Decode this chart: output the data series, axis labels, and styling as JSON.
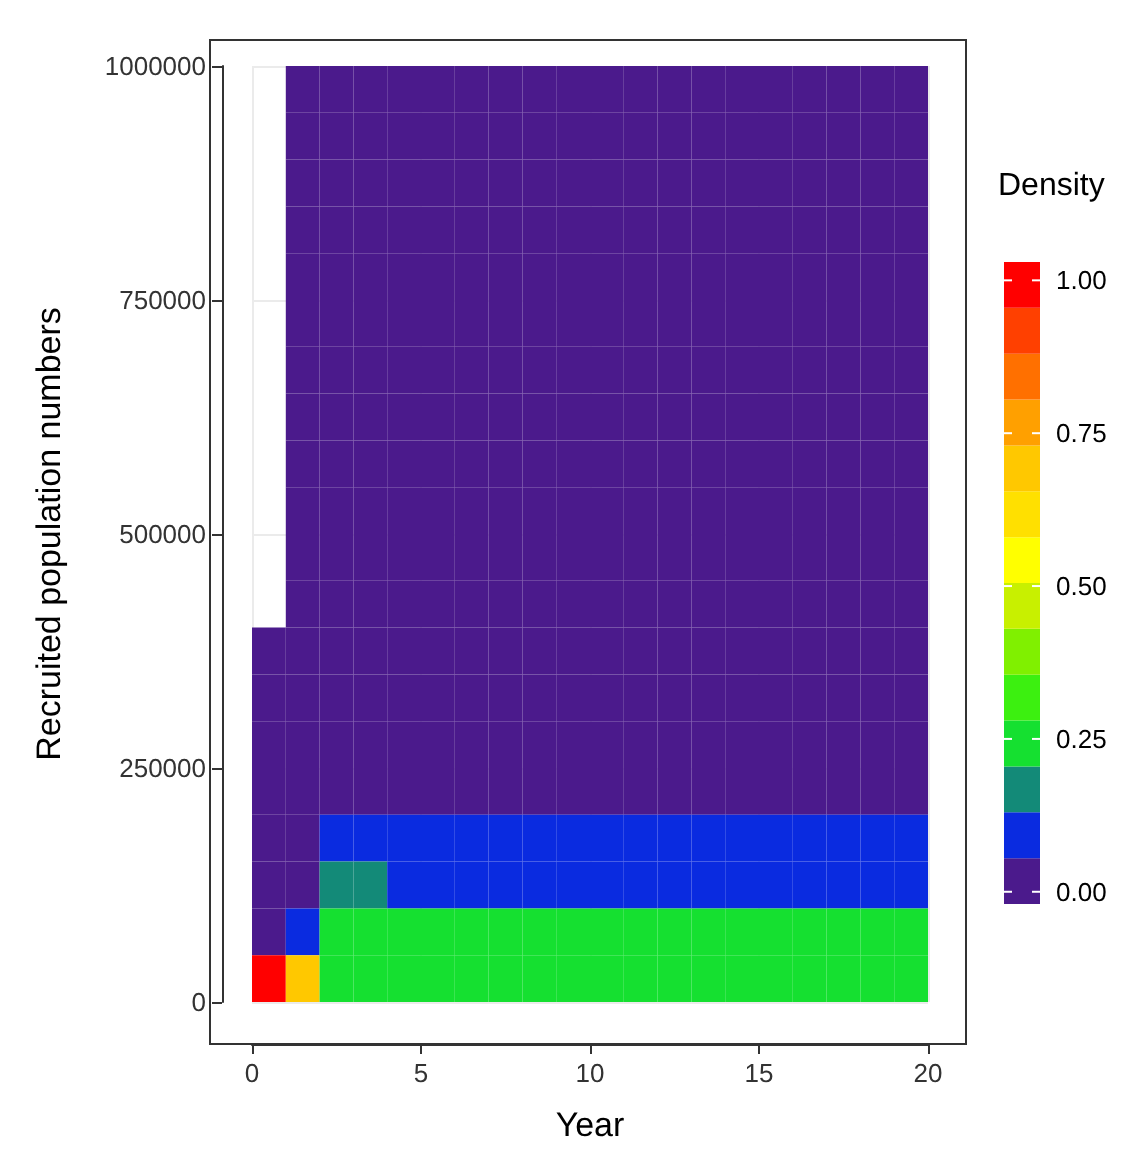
{
  "chart_data": {
    "type": "heatmap",
    "xlabel": "Year",
    "ylabel": "Recruited population numbers",
    "clabel": "Density",
    "x": [
      0.5,
      1.5,
      2.5,
      3.5,
      4.5,
      5.5,
      6.5,
      7.5,
      8.5,
      9.5,
      10.5,
      11.5,
      12.5,
      13.5,
      14.5,
      15.5,
      16.5,
      17.5,
      18.5,
      19.5
    ],
    "cells": [
      [
        null,
        0.005,
        0.008,
        0.01,
        0.008,
        0.01,
        0.008,
        0.01,
        0.008,
        0.008,
        0.01,
        0.008,
        0.008,
        0.01,
        0.008,
        0.01,
        0.008,
        0.01,
        0.008,
        0.01
      ],
      [
        null,
        0.005,
        0.01,
        0.01,
        0.008,
        0.01,
        0.01,
        0.008,
        0.01,
        0.008,
        0.01,
        0.01,
        0.008,
        0.01,
        0.01,
        0.008,
        0.01,
        0.01,
        0.008,
        0.01
      ],
      [
        null,
        0.005,
        0.01,
        0.01,
        0.01,
        0.01,
        0.01,
        0.01,
        0.01,
        0.01,
        0.01,
        0.01,
        0.01,
        0.01,
        0.01,
        0.01,
        0.01,
        0.01,
        0.01,
        0.01
      ],
      [
        null,
        0.005,
        0.01,
        0.01,
        0.01,
        0.01,
        0.01,
        0.01,
        0.01,
        0.01,
        0.01,
        0.01,
        0.01,
        0.01,
        0.01,
        0.01,
        0.01,
        0.01,
        0.01,
        0.01
      ],
      [
        null,
        0.005,
        0.01,
        0.01,
        0.01,
        0.01,
        0.01,
        0.01,
        0.01,
        0.01,
        0.01,
        0.01,
        0.01,
        0.01,
        0.01,
        0.01,
        0.01,
        0.01,
        0.01,
        0.01
      ],
      [
        null,
        0.005,
        0.01,
        0.01,
        0.01,
        0.01,
        0.01,
        0.01,
        0.01,
        0.01,
        0.01,
        0.01,
        0.01,
        0.01,
        0.01,
        0.01,
        0.01,
        0.01,
        0.01,
        0.01
      ],
      [
        null,
        0.005,
        0.01,
        0.01,
        0.01,
        0.01,
        0.01,
        0.01,
        0.01,
        0.01,
        0.01,
        0.01,
        0.01,
        0.01,
        0.01,
        0.01,
        0.01,
        0.01,
        0.01,
        0.01
      ],
      [
        null,
        0.005,
        0.01,
        0.01,
        0.01,
        0.01,
        0.01,
        0.01,
        0.01,
        0.01,
        0.01,
        0.01,
        0.01,
        0.01,
        0.01,
        0.01,
        0.01,
        0.01,
        0.01,
        0.01
      ],
      [
        null,
        0.005,
        0.01,
        0.01,
        0.01,
        0.01,
        0.01,
        0.01,
        0.01,
        0.01,
        0.01,
        0.01,
        0.01,
        0.01,
        0.01,
        0.01,
        0.01,
        0.01,
        0.01,
        0.01
      ],
      [
        null,
        0.005,
        0.01,
        0.01,
        0.01,
        0.01,
        0.01,
        0.01,
        0.01,
        0.01,
        0.01,
        0.01,
        0.01,
        0.01,
        0.01,
        0.01,
        0.01,
        0.01,
        0.01,
        0.01
      ],
      [
        null,
        0.005,
        0.01,
        0.01,
        0.01,
        0.01,
        0.01,
        0.01,
        0.01,
        0.01,
        0.01,
        0.01,
        0.01,
        0.01,
        0.01,
        0.01,
        0.01,
        0.01,
        0.01,
        0.01
      ],
      [
        null,
        0.005,
        0.01,
        0.01,
        0.01,
        0.01,
        0.01,
        0.01,
        0.01,
        0.01,
        0.01,
        0.01,
        0.01,
        0.01,
        0.01,
        0.01,
        0.01,
        0.01,
        0.01,
        0.01
      ],
      [
        0.005,
        0.01,
        0.02,
        0.02,
        0.02,
        0.02,
        0.02,
        0.02,
        0.02,
        0.02,
        0.02,
        0.02,
        0.02,
        0.02,
        0.02,
        0.02,
        0.02,
        0.02,
        0.02,
        0.02
      ],
      [
        0.005,
        0.01,
        0.02,
        0.02,
        0.02,
        0.02,
        0.02,
        0.02,
        0.02,
        0.02,
        0.02,
        0.02,
        0.02,
        0.02,
        0.02,
        0.02,
        0.02,
        0.02,
        0.02,
        0.02
      ],
      [
        0.005,
        0.01,
        0.03,
        0.03,
        0.03,
        0.03,
        0.03,
        0.03,
        0.03,
        0.03,
        0.03,
        0.03,
        0.03,
        0.03,
        0.03,
        0.03,
        0.03,
        0.03,
        0.03,
        0.03
      ],
      [
        0.005,
        0.01,
        0.04,
        0.04,
        0.04,
        0.04,
        0.04,
        0.04,
        0.04,
        0.04,
        0.04,
        0.04,
        0.04,
        0.04,
        0.04,
        0.04,
        0.04,
        0.04,
        0.04,
        0.04
      ],
      [
        0.01,
        0.02,
        0.06,
        0.07,
        0.06,
        0.06,
        0.06,
        0.06,
        0.06,
        0.06,
        0.06,
        0.06,
        0.06,
        0.06,
        0.06,
        0.06,
        0.06,
        0.06,
        0.06,
        0.06
      ],
      [
        0.01,
        0.03,
        0.15,
        0.15,
        0.12,
        0.1,
        0.1,
        0.1,
        0.1,
        0.1,
        0.1,
        0.1,
        0.1,
        0.1,
        0.1,
        0.1,
        0.1,
        0.1,
        0.1,
        0.1
      ],
      [
        0.03,
        0.06,
        0.21,
        0.24,
        0.21,
        0.22,
        0.21,
        0.22,
        0.21,
        0.21,
        0.22,
        0.21,
        0.21,
        0.22,
        0.21,
        0.22,
        0.21,
        0.21,
        0.22,
        0.21
      ],
      [
        1.0,
        0.7,
        0.22,
        0.26,
        0.24,
        0.22,
        0.24,
        0.22,
        0.24,
        0.22,
        0.24,
        0.22,
        0.22,
        0.24,
        0.22,
        0.24,
        0.22,
        0.24,
        0.22,
        0.24
      ]
    ],
    "colors": [
      "#4b1a8c",
      "#0a2be0",
      "#138a78",
      "#15e030",
      "#3cf010",
      "#80f000",
      "#c8f000",
      "#ffff00",
      "#ffe000",
      "#ffc800",
      "#ffa000",
      "#ff7000",
      "#ff4000",
      "#ff0000"
    ],
    "xlim": [
      0,
      20
    ],
    "xticks": [
      0,
      5,
      10,
      15,
      20
    ],
    "ylim": [
      0,
      1000000
    ],
    "yticks": [
      0,
      250000,
      500000,
      750000,
      1000000
    ],
    "clim": [
      -0.02,
      1.03
    ],
    "cticks": [
      {
        "value": 0,
        "label": "0.00"
      },
      {
        "value": 0.25,
        "label": "0.25"
      },
      {
        "value": 0.5,
        "label": "0.50"
      },
      {
        "value": 0.75,
        "label": "0.75"
      },
      {
        "value": 1,
        "label": "1.00"
      }
    ],
    "grid": true
  }
}
